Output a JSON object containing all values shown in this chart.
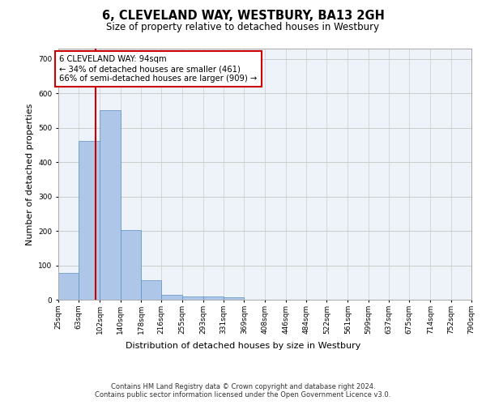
{
  "title": "6, CLEVELAND WAY, WESTBURY, BA13 2GH",
  "subtitle": "Size of property relative to detached houses in Westbury",
  "xlabel": "Distribution of detached houses by size in Westbury",
  "ylabel": "Number of detached properties",
  "footer_line1": "Contains HM Land Registry data © Crown copyright and database right 2024.",
  "footer_line2": "Contains public sector information licensed under the Open Government Licence v3.0.",
  "annotation_line1": "6 CLEVELAND WAY: 94sqm",
  "annotation_line2": "← 34% of detached houses are smaller (461)",
  "annotation_line3": "66% of semi-detached houses are larger (909) →",
  "property_size": 94,
  "bar_edges": [
    25,
    63,
    102,
    140,
    178,
    216,
    255,
    293,
    331,
    369,
    408,
    446,
    484,
    522,
    561,
    599,
    637,
    675,
    714,
    752,
    790
  ],
  "bar_heights": [
    78,
    462,
    550,
    203,
    57,
    15,
    10,
    10,
    8,
    0,
    0,
    0,
    0,
    0,
    0,
    0,
    0,
    0,
    0,
    0
  ],
  "bar_color": "#aec6e8",
  "bar_edge_color": "#5a8fc0",
  "red_line_color": "#cc0000",
  "annotation_box_color": "#cc0000",
  "grid_color": "#cccccc",
  "background_color": "#eef2f9",
  "ylim": [
    0,
    730
  ],
  "yticks": [
    0,
    100,
    200,
    300,
    400,
    500,
    600,
    700
  ]
}
